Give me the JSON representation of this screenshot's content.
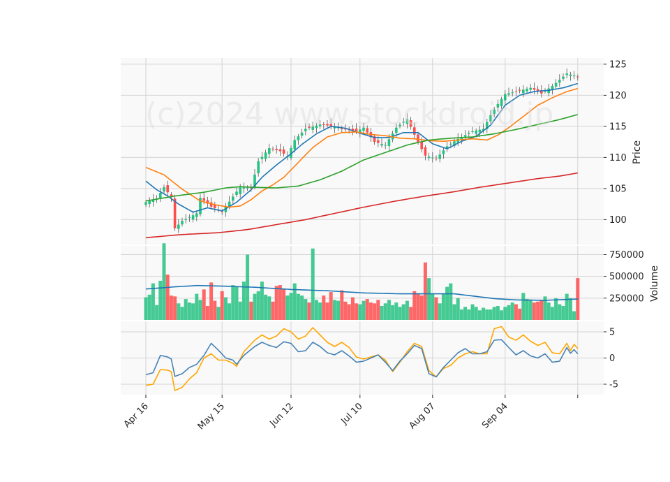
{
  "chart_data": {
    "type": "candlestick-multi-panel",
    "watermark": "(c)2024 www.stockdroid.jp",
    "colors": {
      "up": "#26c281",
      "down": "#ff4d4d",
      "sma_short": "#1f77b4",
      "sma_mid": "#ff7f0e",
      "sma_long": "#2ca02c",
      "sma_longest": "#d62728",
      "volume_ma": "#1f77b4",
      "osc_fast": "#4682b4",
      "osc_slow": "#ffa500",
      "panel_bg": "#f9f9f9",
      "grid": "#d4d4d4"
    },
    "x_ticks": [
      {
        "label": "Apr 16",
        "index": 0
      },
      {
        "label": "May 15",
        "index": 21
      },
      {
        "label": "Jun 12",
        "index": 40
      },
      {
        "label": "Jul 10",
        "index": 59
      },
      {
        "label": "Aug 07",
        "index": 79
      },
      {
        "label": "Sep 04",
        "index": 99
      },
      {
        "label": "",
        "index": 119
      }
    ],
    "price_panel": {
      "ylabel": "Price",
      "ylim": [
        96,
        126
      ],
      "yticks": [
        100,
        105,
        110,
        115,
        120,
        125
      ],
      "close_anchors": [
        [
          0,
          102.8
        ],
        [
          3,
          103.4
        ],
        [
          5,
          105.2
        ],
        [
          7,
          103.6
        ],
        [
          8,
          98.6
        ],
        [
          10,
          99.8
        ],
        [
          14,
          101.0
        ],
        [
          15,
          103.5
        ],
        [
          18,
          102.1
        ],
        [
          21,
          101.3
        ],
        [
          23,
          102.9
        ],
        [
          26,
          105.3
        ],
        [
          29,
          105.1
        ],
        [
          31,
          109.4
        ],
        [
          34,
          111.5
        ],
        [
          37,
          111.0
        ],
        [
          39,
          110.2
        ],
        [
          41,
          112.8
        ],
        [
          44,
          114.6
        ],
        [
          48,
          115.3
        ],
        [
          52,
          115.0
        ],
        [
          55,
          114.5
        ],
        [
          58,
          114.2
        ],
        [
          60,
          114.8
        ],
        [
          63,
          112.5
        ],
        [
          66,
          112.0
        ],
        [
          69,
          114.8
        ],
        [
          72,
          116.2
        ],
        [
          75,
          112.4
        ],
        [
          77,
          110.3
        ],
        [
          80,
          109.8
        ],
        [
          83,
          111.8
        ],
        [
          86,
          113.0
        ],
        [
          90,
          114.2
        ],
        [
          93,
          114.6
        ],
        [
          95,
          116.8
        ],
        [
          97,
          118.6
        ],
        [
          99,
          120.2
        ],
        [
          102,
          120.6
        ],
        [
          106,
          121.2
        ],
        [
          109,
          120.3
        ],
        [
          112,
          121.5
        ],
        [
          116,
          123.5
        ],
        [
          119,
          123.0
        ]
      ],
      "sma": [
        {
          "anchors": [
            [
              0,
              106.2
            ],
            [
              3,
              104.8
            ],
            [
              6,
              103.8
            ],
            [
              9,
              102.5
            ],
            [
              13,
              101.2
            ],
            [
              17,
              101.9
            ],
            [
              21,
              101.4
            ],
            [
              25,
              102.8
            ],
            [
              29,
              104.8
            ],
            [
              32,
              106.8
            ],
            [
              36,
              108.8
            ],
            [
              40,
              110.6
            ],
            [
              43,
              112.1
            ],
            [
              47,
              113.8
            ],
            [
              51,
              115.0
            ],
            [
              55,
              114.7
            ],
            [
              59,
              113.9
            ],
            [
              63,
              113.2
            ],
            [
              67,
              113.2
            ],
            [
              71,
              114.0
            ],
            [
              75,
              114.0
            ],
            [
              79,
              112.2
            ],
            [
              83,
              111.4
            ],
            [
              87,
              112.6
            ],
            [
              91,
              113.4
            ],
            [
              95,
              115.2
            ],
            [
              99,
              118.4
            ],
            [
              103,
              120.0
            ],
            [
              107,
              120.6
            ],
            [
              111,
              120.8
            ],
            [
              115,
              121.2
            ],
            [
              119,
              121.9
            ]
          ]
        },
        {
          "anchors": [
            [
              0,
              108.4
            ],
            [
              5,
              107.2
            ],
            [
              10,
              104.9
            ],
            [
              15,
              103.0
            ],
            [
              19,
              102.4
            ],
            [
              23,
              102.0
            ],
            [
              26,
              102.2
            ],
            [
              29,
              103.2
            ],
            [
              32,
              104.6
            ],
            [
              35,
              105.6
            ],
            [
              38,
              106.8
            ],
            [
              42,
              109.2
            ],
            [
              46,
              111.6
            ],
            [
              50,
              113.3
            ],
            [
              54,
              114.0
            ],
            [
              58,
              114.1
            ],
            [
              62,
              113.7
            ],
            [
              66,
              113.5
            ],
            [
              70,
              113.1
            ],
            [
              74,
              113.0
            ],
            [
              78,
              112.7
            ],
            [
              82,
              112.6
            ],
            [
              86,
              112.8
            ],
            [
              90,
              113.0
            ],
            [
              94,
              112.8
            ],
            [
              97,
              113.6
            ],
            [
              100,
              114.8
            ],
            [
              104,
              116.6
            ],
            [
              108,
              118.4
            ],
            [
              112,
              119.6
            ],
            [
              116,
              120.6
            ],
            [
              119,
              121.1
            ]
          ]
        },
        {
          "anchors": [
            [
              0,
              103.0
            ],
            [
              8,
              103.8
            ],
            [
              16,
              104.4
            ],
            [
              22,
              105.1
            ],
            [
              26,
              105.3
            ],
            [
              30,
              105.2
            ],
            [
              36,
              105.1
            ],
            [
              42,
              105.4
            ],
            [
              48,
              106.4
            ],
            [
              54,
              107.8
            ],
            [
              60,
              109.6
            ],
            [
              66,
              110.8
            ],
            [
              72,
              112.0
            ],
            [
              78,
              112.8
            ],
            [
              84,
              113.1
            ],
            [
              90,
              113.3
            ],
            [
              96,
              113.8
            ],
            [
              102,
              114.5
            ],
            [
              108,
              115.3
            ],
            [
              114,
              116.1
            ],
            [
              119,
              116.9
            ]
          ]
        },
        {
          "anchors": [
            [
              0,
              97.1
            ],
            [
              10,
              97.6
            ],
            [
              20,
              97.9
            ],
            [
              28,
              98.4
            ],
            [
              36,
              99.2
            ],
            [
              44,
              100.0
            ],
            [
              52,
              101.0
            ],
            [
              60,
              102.0
            ],
            [
              68,
              102.9
            ],
            [
              76,
              103.7
            ],
            [
              84,
              104.4
            ],
            [
              92,
              105.2
            ],
            [
              100,
              105.9
            ],
            [
              108,
              106.6
            ],
            [
              114,
              107.0
            ],
            [
              119,
              107.5
            ]
          ]
        }
      ]
    },
    "volume_panel": {
      "ylabel": "Volume",
      "ylim": [
        0,
        850000
      ],
      "yticks": [
        250000,
        500000,
        750000
      ],
      "ytick_labels": [
        "250000",
        "500000",
        "750000"
      ],
      "values": [
        260000,
        290000,
        420000,
        170000,
        450000,
        880000,
        520000,
        280000,
        270000,
        190000,
        150000,
        240000,
        200000,
        190000,
        300000,
        230000,
        350000,
        160000,
        430000,
        220000,
        150000,
        330000,
        260000,
        190000,
        400000,
        380000,
        210000,
        440000,
        750000,
        210000,
        300000,
        330000,
        440000,
        290000,
        270000,
        210000,
        390000,
        400000,
        360000,
        280000,
        310000,
        420000,
        300000,
        280000,
        240000,
        200000,
        820000,
        230000,
        200000,
        280000,
        200000,
        320000,
        230000,
        220000,
        340000,
        210000,
        180000,
        260000,
        190000,
        180000,
        220000,
        240000,
        200000,
        190000,
        230000,
        160000,
        190000,
        230000,
        170000,
        200000,
        150000,
        180000,
        220000,
        150000,
        330000,
        300000,
        280000,
        660000,
        480000,
        300000,
        260000,
        190000,
        300000,
        380000,
        420000,
        180000,
        250000,
        120000,
        150000,
        120000,
        180000,
        150000,
        110000,
        140000,
        120000,
        120000,
        150000,
        160000,
        110000,
        150000,
        170000,
        200000,
        180000,
        130000,
        310000,
        240000,
        230000,
        200000,
        210000,
        230000,
        270000,
        200000,
        150000,
        250000,
        180000,
        160000,
        300000,
        250000,
        100000,
        480000
      ],
      "ma_anchors": [
        [
          0,
          355000
        ],
        [
          8,
          380000
        ],
        [
          14,
          395000
        ],
        [
          20,
          390000
        ],
        [
          30,
          375000
        ],
        [
          40,
          350000
        ],
        [
          50,
          335000
        ],
        [
          60,
          310000
        ],
        [
          70,
          300000
        ],
        [
          80,
          300000
        ],
        [
          85,
          300000
        ],
        [
          90,
          275000
        ],
        [
          96,
          245000
        ],
        [
          102,
          230000
        ],
        [
          110,
          225000
        ],
        [
          119,
          240000
        ]
      ]
    },
    "oscillator_panel": {
      "ylim": [
        -7,
        7
      ],
      "yticks": [
        -5,
        0,
        5
      ],
      "fast_anchors": [
        [
          0,
          -3.2
        ],
        [
          2,
          -2.8
        ],
        [
          4,
          0.5
        ],
        [
          6,
          0.2
        ],
        [
          7,
          -0.2
        ],
        [
          8,
          -3.5
        ],
        [
          10,
          -3.0
        ],
        [
          12,
          -1.8
        ],
        [
          14,
          -1.2
        ],
        [
          16,
          0.5
        ],
        [
          18,
          2.8
        ],
        [
          20,
          1.5
        ],
        [
          22,
          0.0
        ],
        [
          24,
          -0.4
        ],
        [
          25,
          -1.2
        ],
        [
          27,
          0.5
        ],
        [
          30,
          2.2
        ],
        [
          32,
          3.0
        ],
        [
          34,
          2.4
        ],
        [
          36,
          2.0
        ],
        [
          38,
          3.1
        ],
        [
          40,
          2.8
        ],
        [
          42,
          1.2
        ],
        [
          44,
          1.4
        ],
        [
          46,
          3.0
        ],
        [
          48,
          2.2
        ],
        [
          50,
          1.0
        ],
        [
          52,
          0.6
        ],
        [
          54,
          1.4
        ],
        [
          56,
          0.4
        ],
        [
          58,
          -0.8
        ],
        [
          60,
          -0.6
        ],
        [
          62,
          0.0
        ],
        [
          64,
          0.6
        ],
        [
          66,
          -0.8
        ],
        [
          68,
          -2.4
        ],
        [
          70,
          -0.6
        ],
        [
          72,
          0.8
        ],
        [
          74,
          2.4
        ],
        [
          76,
          1.8
        ],
        [
          78,
          -3.0
        ],
        [
          80,
          -3.6
        ],
        [
          82,
          -1.8
        ],
        [
          84,
          -0.4
        ],
        [
          86,
          1.0
        ],
        [
          88,
          1.8
        ],
        [
          90,
          0.8
        ],
        [
          92,
          0.8
        ],
        [
          94,
          1.2
        ],
        [
          96,
          3.4
        ],
        [
          98,
          3.5
        ],
        [
          100,
          2.0
        ],
        [
          102,
          0.6
        ],
        [
          104,
          1.4
        ],
        [
          106,
          0.4
        ],
        [
          108,
          0.0
        ],
        [
          110,
          0.8
        ],
        [
          112,
          -0.8
        ],
        [
          114,
          -0.6
        ],
        [
          116,
          2.0
        ],
        [
          117,
          0.9
        ],
        [
          118,
          1.6
        ],
        [
          119,
          0.8
        ]
      ],
      "slow_anchors": [
        [
          0,
          -5.2
        ],
        [
          2,
          -5.0
        ],
        [
          4,
          -2.2
        ],
        [
          6,
          -2.3
        ],
        [
          7,
          -2.6
        ],
        [
          8,
          -6.2
        ],
        [
          10,
          -5.6
        ],
        [
          12,
          -4.0
        ],
        [
          14,
          -2.8
        ],
        [
          16,
          0.0
        ],
        [
          18,
          0.8
        ],
        [
          20,
          -0.4
        ],
        [
          22,
          -0.4
        ],
        [
          24,
          -1.0
        ],
        [
          25,
          -1.6
        ],
        [
          27,
          1.2
        ],
        [
          30,
          3.4
        ],
        [
          32,
          4.4
        ],
        [
          34,
          3.6
        ],
        [
          36,
          4.2
        ],
        [
          38,
          5.6
        ],
        [
          40,
          5.0
        ],
        [
          42,
          3.6
        ],
        [
          44,
          4.2
        ],
        [
          46,
          5.8
        ],
        [
          48,
          4.4
        ],
        [
          50,
          3.0
        ],
        [
          52,
          2.2
        ],
        [
          54,
          3.0
        ],
        [
          56,
          2.0
        ],
        [
          58,
          0.2
        ],
        [
          60,
          -0.2
        ],
        [
          62,
          0.2
        ],
        [
          64,
          0.6
        ],
        [
          66,
          -0.4
        ],
        [
          68,
          -2.6
        ],
        [
          70,
          -0.8
        ],
        [
          72,
          1.2
        ],
        [
          74,
          2.8
        ],
        [
          76,
          2.2
        ],
        [
          78,
          -2.4
        ],
        [
          80,
          -3.6
        ],
        [
          82,
          -2.0
        ],
        [
          84,
          -1.4
        ],
        [
          86,
          0.0
        ],
        [
          88,
          0.8
        ],
        [
          90,
          1.2
        ],
        [
          92,
          0.8
        ],
        [
          94,
          0.8
        ],
        [
          96,
          5.6
        ],
        [
          98,
          6.0
        ],
        [
          100,
          4.0
        ],
        [
          102,
          3.4
        ],
        [
          104,
          4.4
        ],
        [
          106,
          3.2
        ],
        [
          108,
          2.4
        ],
        [
          110,
          3.0
        ],
        [
          112,
          1.0
        ],
        [
          114,
          0.8
        ],
        [
          116,
          2.8
        ],
        [
          117,
          1.4
        ],
        [
          118,
          2.6
        ],
        [
          119,
          1.8
        ]
      ]
    }
  }
}
